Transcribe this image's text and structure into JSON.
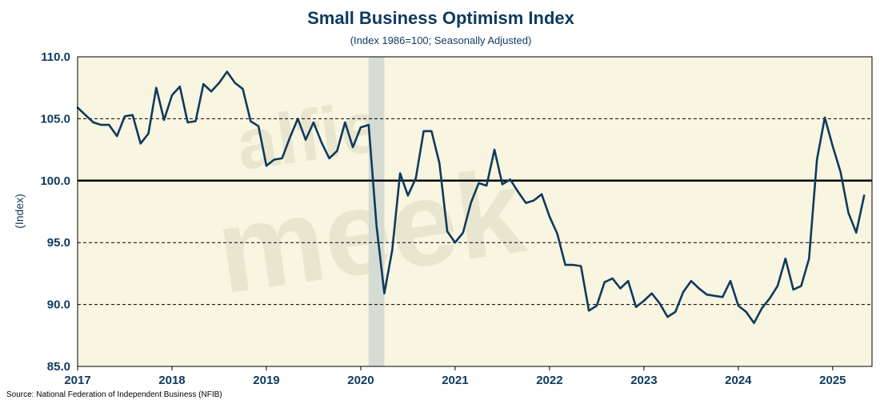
{
  "colors": {
    "line": "#0e3a5e",
    "text": "#0e3a5e",
    "plot_bg": "#f8f5e0",
    "recession": "#d4d9d2",
    "baseline": "#000000",
    "watermark": "#e9e6cf"
  },
  "watermark": {
    "line1": "alfie",
    "line2": "meek"
  },
  "chart_data": {
    "type": "line",
    "title": "Small Business Optimism Index",
    "subtitle": "(Index 1986=100; Seasonally Adjusted)",
    "xlabel": "",
    "ylabel": "(Index)",
    "source": "Source: National Federation of Independent Business (NFIB)",
    "ylim": [
      85,
      110
    ],
    "xlim": [
      2017.0,
      2025.4167
    ],
    "yticks": [
      110,
      105,
      100,
      95,
      90,
      85
    ],
    "ytick_labels": [
      "110.0",
      "105.0",
      "100.0",
      "95.0",
      "90.0",
      "85.0"
    ],
    "xticks": [
      2017,
      2018,
      2019,
      2020,
      2021,
      2022,
      2023,
      2024,
      2025
    ],
    "xtick_labels": [
      "2017",
      "2018",
      "2019",
      "2020",
      "2021",
      "2022",
      "2023",
      "2024",
      "2025"
    ],
    "grid": "horizontal dashed at 90 and 95 and 105; solid baseline at 100",
    "recession_band": [
      2020.0833,
      2020.25
    ],
    "start": "2017-01",
    "frequency": "monthly",
    "series": [
      {
        "values": [
          105.9,
          105.3,
          104.7,
          104.5,
          104.5,
          103.6,
          105.2,
          105.3,
          103.0,
          103.8,
          107.5,
          104.9,
          106.9,
          107.6,
          104.7,
          104.8,
          107.8,
          107.2,
          107.9,
          108.8,
          107.9,
          107.4,
          104.8,
          104.4,
          101.2,
          101.7,
          101.8,
          103.5,
          105.0,
          103.3,
          104.7,
          103.1,
          101.8,
          102.4,
          104.7,
          102.7,
          104.3,
          104.5,
          96.4,
          90.9,
          94.4,
          100.6,
          98.8,
          100.2,
          104.0,
          104.0,
          101.4,
          95.9,
          95.0,
          95.8,
          98.2,
          99.8,
          99.6,
          102.5,
          99.7,
          100.1,
          99.1,
          98.2,
          98.4,
          98.9,
          97.1,
          95.7,
          93.2,
          93.2,
          93.1,
          89.5,
          89.9,
          91.8,
          92.1,
          91.3,
          91.9,
          89.8,
          90.3,
          90.9,
          90.1,
          89.0,
          89.4,
          91.0,
          91.9,
          91.3,
          90.8,
          90.7,
          90.6,
          91.9,
          89.9,
          89.4,
          88.5,
          89.7,
          90.5,
          91.5,
          93.7,
          91.2,
          91.5,
          93.7,
          101.7,
          105.1,
          102.8,
          100.7,
          97.4,
          95.8,
          98.8
        ]
      }
    ]
  }
}
